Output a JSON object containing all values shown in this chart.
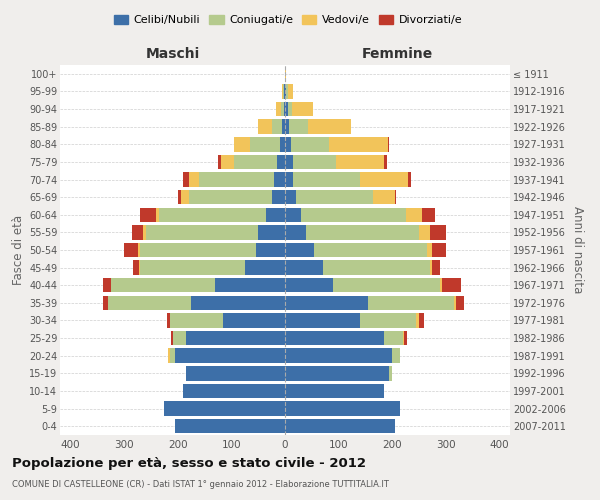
{
  "age_groups": [
    "0-4",
    "5-9",
    "10-14",
    "15-19",
    "20-24",
    "25-29",
    "30-34",
    "35-39",
    "40-44",
    "45-49",
    "50-54",
    "55-59",
    "60-64",
    "65-69",
    "70-74",
    "75-79",
    "80-84",
    "85-89",
    "90-94",
    "95-99",
    "100+"
  ],
  "birth_years": [
    "2007-2011",
    "2002-2006",
    "1997-2001",
    "1992-1996",
    "1987-1991",
    "1982-1986",
    "1977-1981",
    "1972-1976",
    "1967-1971",
    "1962-1966",
    "1957-1961",
    "1952-1956",
    "1947-1951",
    "1942-1946",
    "1937-1941",
    "1932-1936",
    "1927-1931",
    "1922-1926",
    "1917-1921",
    "1912-1916",
    "≤ 1911"
  ],
  "colors": {
    "celibi": "#3d6fa8",
    "coniugati": "#b5ca8d",
    "vedovi": "#f2c45a",
    "divorziati": "#c0392b"
  },
  "males": {
    "celibi": [
      205,
      225,
      190,
      185,
      205,
      185,
      115,
      175,
      130,
      75,
      55,
      50,
      35,
      25,
      20,
      15,
      10,
      5,
      2,
      1,
      0
    ],
    "coniugati": [
      0,
      0,
      0,
      0,
      10,
      25,
      100,
      155,
      195,
      195,
      215,
      210,
      200,
      155,
      140,
      80,
      55,
      20,
      5,
      2,
      0
    ],
    "vedovi": [
      0,
      0,
      0,
      0,
      3,
      0,
      0,
      0,
      0,
      3,
      5,
      5,
      5,
      15,
      20,
      25,
      30,
      25,
      10,
      3,
      0
    ],
    "divorziati": [
      0,
      0,
      0,
      0,
      0,
      3,
      5,
      10,
      15,
      10,
      25,
      20,
      30,
      5,
      10,
      5,
      0,
      0,
      0,
      0,
      0
    ]
  },
  "females": {
    "celibi": [
      205,
      215,
      185,
      195,
      200,
      185,
      140,
      155,
      90,
      70,
      55,
      40,
      30,
      20,
      15,
      15,
      12,
      8,
      5,
      2,
      0
    ],
    "coniugati": [
      0,
      0,
      0,
      5,
      15,
      35,
      105,
      160,
      200,
      200,
      210,
      210,
      195,
      145,
      125,
      80,
      70,
      35,
      8,
      3,
      0
    ],
    "vedovi": [
      0,
      0,
      0,
      0,
      0,
      3,
      5,
      5,
      3,
      5,
      10,
      20,
      30,
      40,
      90,
      90,
      110,
      80,
      40,
      10,
      1
    ],
    "divorziati": [
      0,
      0,
      0,
      0,
      0,
      5,
      10,
      15,
      35,
      15,
      25,
      30,
      25,
      3,
      5,
      5,
      3,
      0,
      0,
      0,
      0
    ]
  },
  "xlim": 420,
  "title": "Popolazione per età, sesso e stato civile - 2012",
  "subtitle": "COMUNE DI CASTELLEONE (CR) - Dati ISTAT 1° gennaio 2012 - Elaborazione TUTTITALIA.IT",
  "ylabel_left": "Fasce di età",
  "ylabel_right": "Anni di nascita",
  "xlabel_left": "Maschi",
  "xlabel_right": "Femmine",
  "bg_color": "#f0eeec",
  "plot_bg_color": "#ffffff",
  "grid_color": "#bbbbbb"
}
